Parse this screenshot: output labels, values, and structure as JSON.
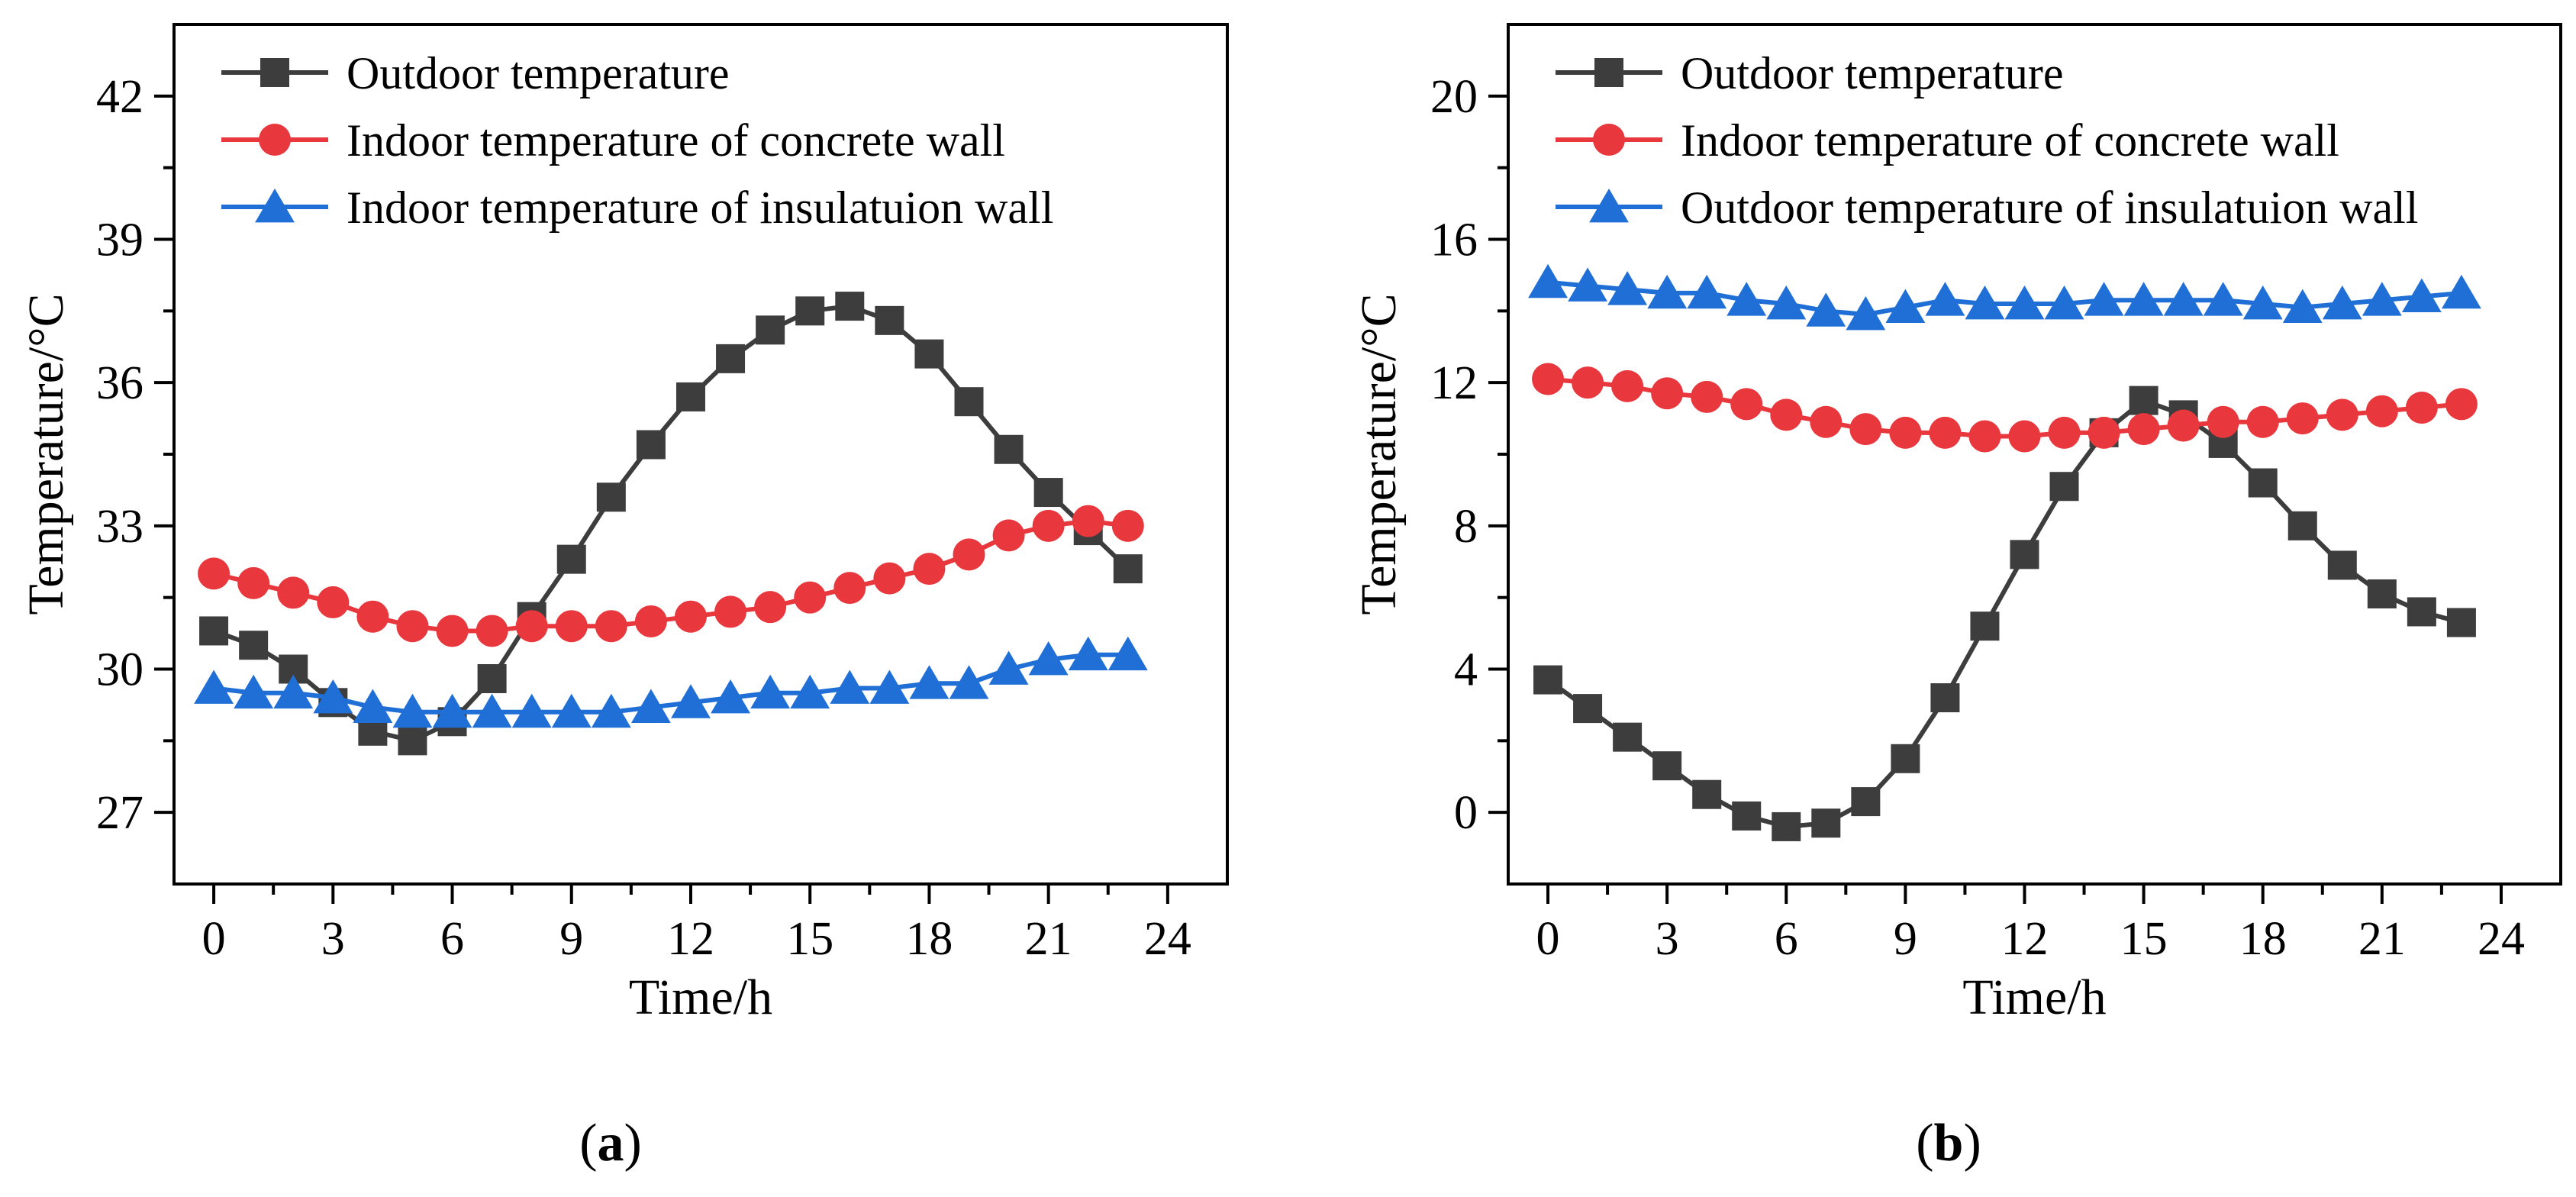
{
  "chart_data": [
    {
      "type": "line",
      "panel_label": "a",
      "xlabel": "Time/h",
      "ylabel": "Temperature/°C",
      "xlim": [
        -1,
        25.5
      ],
      "ylim": [
        25.5,
        43.5
      ],
      "xticks": [
        0,
        3,
        6,
        9,
        12,
        15,
        18,
        21,
        24
      ],
      "yticks": [
        27,
        30,
        33,
        36,
        39,
        42
      ],
      "legend_position": "top-left",
      "x": [
        0,
        1,
        2,
        3,
        4,
        5,
        6,
        7,
        8,
        9,
        10,
        11,
        12,
        13,
        14,
        15,
        16,
        17,
        18,
        19,
        20,
        21,
        22,
        23
      ],
      "series": [
        {
          "name": "Outdoor temperature",
          "color": "#3d3d3d",
          "marker": "square",
          "values": [
            30.8,
            30.5,
            30.0,
            29.3,
            28.7,
            28.5,
            28.9,
            29.8,
            31.1,
            32.3,
            33.6,
            34.7,
            35.7,
            36.5,
            37.1,
            37.5,
            37.6,
            37.3,
            36.6,
            35.6,
            34.6,
            33.7,
            32.9,
            32.1
          ]
        },
        {
          "name": "Indoor temperature of concrete wall",
          "color": "#e8383d",
          "marker": "circle",
          "values": [
            32.0,
            31.8,
            31.6,
            31.4,
            31.1,
            30.9,
            30.8,
            30.8,
            30.9,
            30.9,
            30.9,
            31.0,
            31.1,
            31.2,
            31.3,
            31.5,
            31.7,
            31.9,
            32.1,
            32.4,
            32.8,
            33.0,
            33.1,
            33.0
          ]
        },
        {
          "name": "Indoor temperature of insulatuion wall",
          "color": "#1f6fd6",
          "marker": "triangle",
          "values": [
            29.6,
            29.5,
            29.5,
            29.4,
            29.2,
            29.1,
            29.1,
            29.1,
            29.1,
            29.1,
            29.1,
            29.2,
            29.3,
            29.4,
            29.5,
            29.5,
            29.6,
            29.6,
            29.7,
            29.7,
            30.0,
            30.2,
            30.3,
            30.3
          ]
        }
      ]
    },
    {
      "type": "line",
      "panel_label": "b",
      "xlabel": "Time/h",
      "ylabel": "Temperature/°C",
      "xlim": [
        -1,
        25.5
      ],
      "ylim": [
        -2,
        22
      ],
      "xticks": [
        0,
        3,
        6,
        9,
        12,
        15,
        18,
        21,
        24
      ],
      "yticks": [
        0,
        4,
        8,
        12,
        16,
        20
      ],
      "legend_position": "top-left",
      "x": [
        0,
        1,
        2,
        3,
        4,
        5,
        6,
        7,
        8,
        9,
        10,
        11,
        12,
        13,
        14,
        15,
        16,
        17,
        18,
        19,
        20,
        21,
        22,
        23
      ],
      "series": [
        {
          "name": "Outdoor temperature",
          "color": "#3d3d3d",
          "marker": "square",
          "values": [
            3.7,
            2.9,
            2.1,
            1.3,
            0.5,
            -0.1,
            -0.4,
            -0.3,
            0.3,
            1.5,
            3.2,
            5.2,
            7.2,
            9.1,
            10.6,
            11.5,
            11.1,
            10.3,
            9.2,
            8.0,
            6.9,
            6.1,
            5.6,
            5.3
          ]
        },
        {
          "name": "Indoor temperature of concrete wall",
          "color": "#e8383d",
          "marker": "circle",
          "values": [
            12.1,
            12.0,
            11.9,
            11.7,
            11.6,
            11.4,
            11.1,
            10.9,
            10.7,
            10.6,
            10.6,
            10.5,
            10.5,
            10.6,
            10.6,
            10.7,
            10.8,
            10.9,
            10.9,
            11.0,
            11.1,
            11.2,
            11.3,
            11.4
          ]
        },
        {
          "name": "Outdoor temperature of insulatuion wall",
          "color": "#1f6fd6",
          "marker": "triangle",
          "values": [
            14.8,
            14.7,
            14.6,
            14.5,
            14.5,
            14.3,
            14.2,
            14.0,
            13.9,
            14.1,
            14.3,
            14.2,
            14.2,
            14.2,
            14.3,
            14.3,
            14.3,
            14.3,
            14.2,
            14.1,
            14.2,
            14.3,
            14.4,
            14.5
          ]
        }
      ]
    }
  ]
}
